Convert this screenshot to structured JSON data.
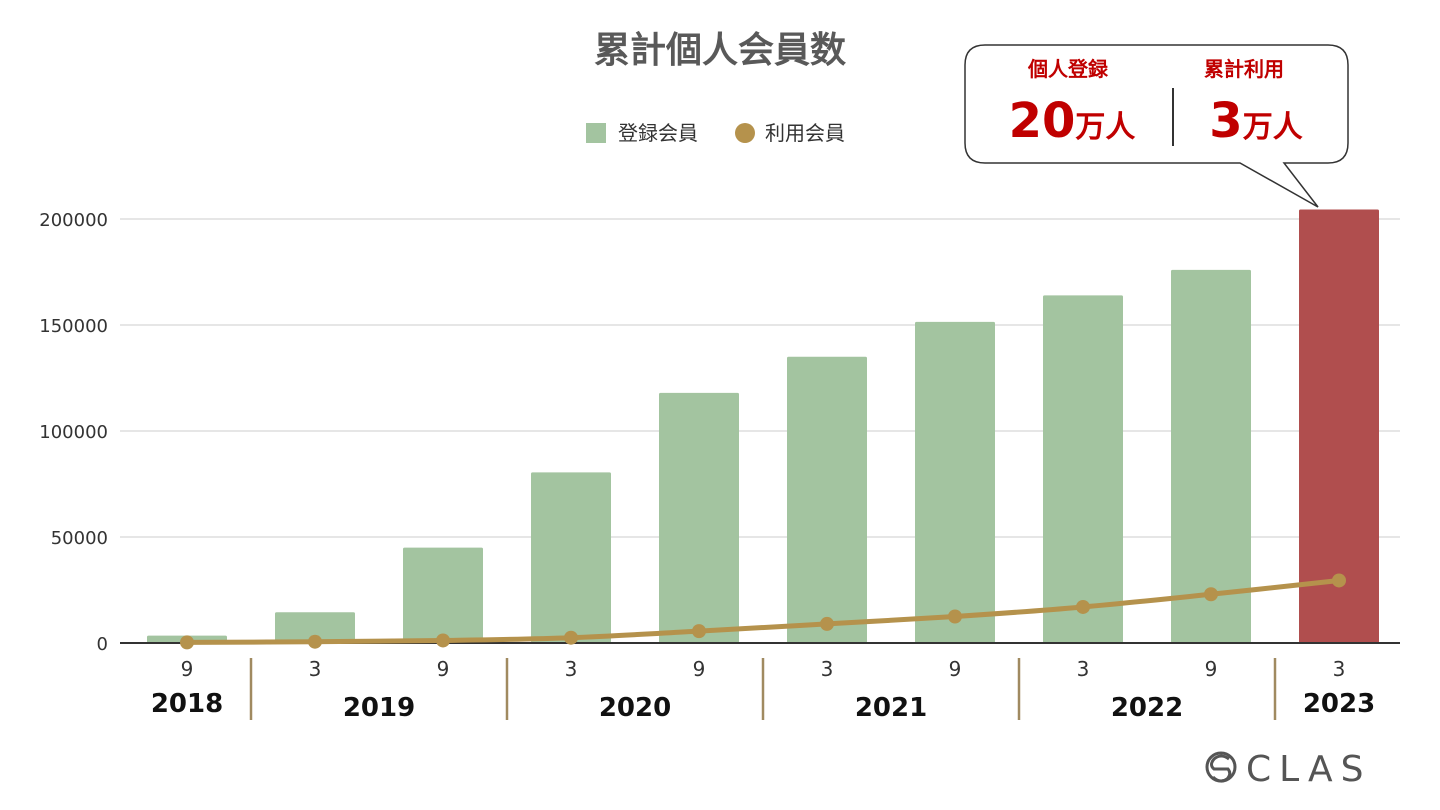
{
  "chart_data": {
    "type": "bar",
    "title": "累計個人会員数",
    "categories": [
      "9",
      "3",
      "9",
      "3",
      "9",
      "3",
      "9",
      "3",
      "9",
      "3"
    ],
    "years": [
      {
        "label": "2018",
        "span": [
          0,
          0
        ]
      },
      {
        "label": "2019",
        "span": [
          1,
          2
        ]
      },
      {
        "label": "2020",
        "span": [
          3,
          4
        ]
      },
      {
        "label": "2021",
        "span": [
          5,
          6
        ]
      },
      {
        "label": "2022",
        "span": [
          7,
          8
        ]
      },
      {
        "label": "2023",
        "span": [
          9,
          9
        ]
      }
    ],
    "series": [
      {
        "name": "登録会員",
        "kind": "bar",
        "color": "#a3c4a0",
        "highlight_color": "#b04e4e",
        "highlight_index": 9,
        "values": [
          3500,
          14500,
          45000,
          80500,
          118000,
          135000,
          151500,
          164000,
          176000,
          204500
        ]
      },
      {
        "name": "利用会員",
        "kind": "line",
        "color": "#b5924c",
        "values": [
          300,
          600,
          1200,
          2500,
          5600,
          9000,
          12500,
          17000,
          23000,
          29500
        ]
      }
    ],
    "yticks": [
      0,
      50000,
      100000,
      150000,
      200000
    ],
    "ylim": [
      0,
      200000
    ],
    "grid": true,
    "legend": "top-center",
    "xlabel": "",
    "ylabel": ""
  },
  "callout": {
    "left": {
      "label": "個人登録",
      "value": "20",
      "unit": "万人"
    },
    "right": {
      "label": "累計利用",
      "value": "3",
      "unit": "万人"
    },
    "text_color": "#c00000",
    "border_color": "#333333"
  },
  "logo": {
    "text": "CLAS",
    "icon": "clas-logo-icon"
  }
}
